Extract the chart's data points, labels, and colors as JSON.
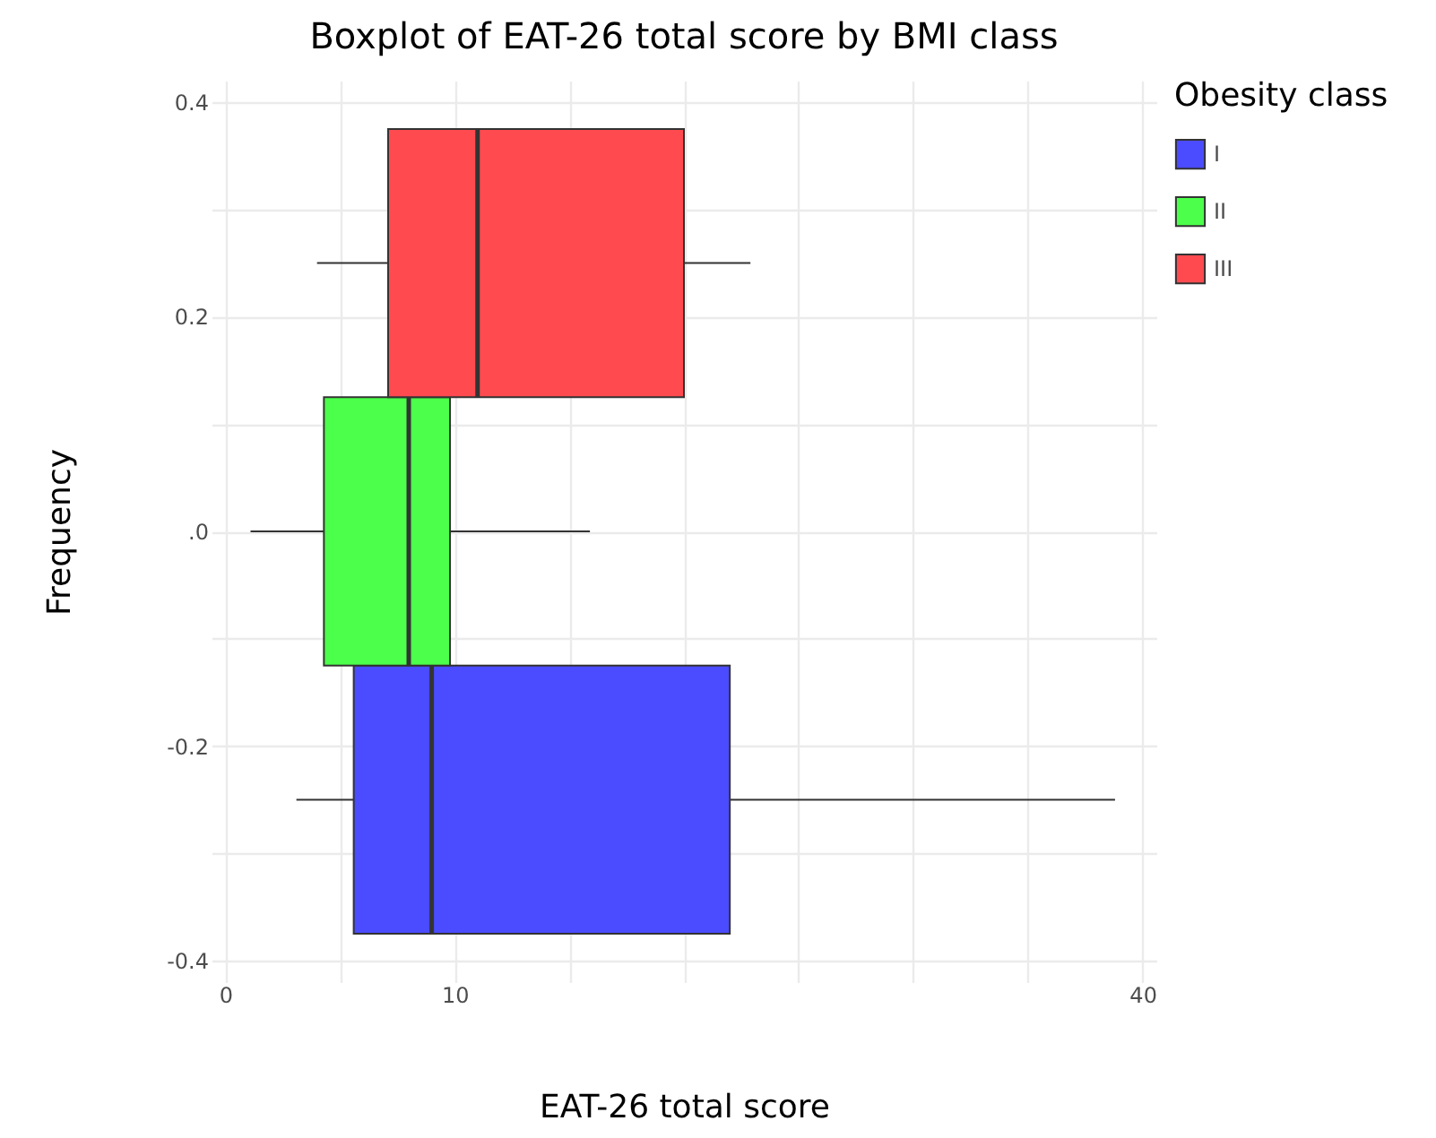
{
  "chart_data": {
    "type": "box",
    "title": "Boxplot of EAT-26 total score by BMI class",
    "xlabel": "EAT-26 total score",
    "ylabel": "Frequency",
    "legend_title": "Obesity class",
    "orientation": "horizontal",
    "legend": "right",
    "grid": true,
    "xlim": [
      -0.6,
      40.6
    ],
    "xticks": [
      0,
      {
        "value": 5,
        "label": null
      },
      10,
      {
        "value": 15,
        "label": null
      },
      {
        "value": 20,
        "label": null
      },
      {
        "value": 25,
        "label": null
      },
      {
        "value": 30,
        "label": null
      },
      {
        "value": 35,
        "label": null
      },
      40
    ],
    "ylim": [
      -0.42,
      0.42
    ],
    "yticks": [
      {
        "value": -0.4,
        "label": "-0.4"
      },
      {
        "value": -0.3,
        "label": null
      },
      {
        "value": -0.2,
        "label": "-0.2"
      },
      {
        "value": -0.1,
        "label": null
      },
      {
        "value": 0,
        "label": ".0"
      },
      {
        "value": 0.1,
        "label": null
      },
      {
        "value": 0.2,
        "label": "0.2"
      },
      {
        "value": 0.3,
        "label": null
      },
      {
        "value": 0.4,
        "label": "0.4"
      }
    ],
    "series": [
      {
        "name": "I",
        "color": "#4b4bff",
        "x": [
          -0.25
        ],
        "boxes": [
          {
            "low": 3.1,
            "q1": 5.6,
            "median": 9.0,
            "q3": 22.0,
            "high": 38.8
          }
        ]
      },
      {
        "name": "II",
        "color": "#4bff4b",
        "x": [
          0
        ],
        "boxes": [
          {
            "low": 1.1,
            "q1": 4.3,
            "median": 8.0,
            "q3": 9.8,
            "high": 15.9
          }
        ]
      },
      {
        "name": "III",
        "color": "#ff4b4f",
        "x": [
          0.25
        ],
        "boxes": [
          {
            "low": 4.0,
            "q1": 7.1,
            "median": 11.0,
            "q3": 20.0,
            "high": 22.9
          }
        ]
      }
    ]
  }
}
